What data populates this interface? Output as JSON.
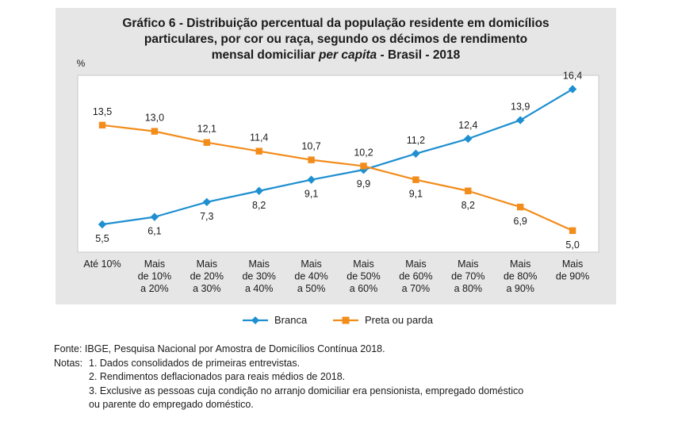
{
  "title": {
    "line1": "Gráfico 6 - Distribuição percentual da população residente em domicílios",
    "line2": "particulares, por cor ou raça, segundo os décimos de rendimento",
    "line3_before": "mensal domiciliar ",
    "line3_italic": "per capita",
    "line3_after": " - Brasil - 2018"
  },
  "chart_data": {
    "type": "line",
    "ylabel": "%",
    "ylim": [
      4,
      17
    ],
    "grid": false,
    "legend_position": "bottom",
    "categories": [
      [
        "Até 10%"
      ],
      [
        "Mais",
        "de 10%",
        "a 20%"
      ],
      [
        "Mais",
        "de 20%",
        "a 30%"
      ],
      [
        "Mais",
        "de 30%",
        "a 40%"
      ],
      [
        "Mais",
        "de 40%",
        "a 50%"
      ],
      [
        "Mais",
        "de 50%",
        "a 60%"
      ],
      [
        "Mais",
        "de 60%",
        "a 70%"
      ],
      [
        "Mais",
        "de 70%",
        "a 80%"
      ],
      [
        "Mais",
        "de 80%",
        "a 90%"
      ],
      [
        "Mais",
        "de 90%"
      ]
    ],
    "series": [
      {
        "name": "Branca",
        "color": "#1e8fd0",
        "marker": "diamond",
        "values": [
          5.5,
          6.1,
          7.3,
          8.2,
          9.1,
          9.9,
          11.2,
          12.4,
          13.9,
          16.4
        ],
        "labels": [
          "5,5",
          "6,1",
          "7,3",
          "8,2",
          "9,1",
          "9,9",
          "11,2",
          "12,4",
          "13,9",
          "16,4"
        ]
      },
      {
        "name": "Preta ou parda",
        "color": "#f28c1a",
        "marker": "square",
        "values": [
          13.5,
          13.0,
          12.1,
          11.4,
          10.7,
          10.2,
          9.1,
          8.2,
          6.9,
          5.0
        ],
        "labels": [
          "13,5",
          "13,0",
          "12,1",
          "11,4",
          "10,7",
          "10,2",
          "9,1",
          "8,2",
          "6,9",
          "5,0"
        ]
      }
    ]
  },
  "notes": {
    "source": "Fonte: IBGE, Pesquisa Nacional por Amostra de Domicílios Contínua 2018.",
    "notes_label": "Notas:",
    "note1": "1. Dados consolidados de primeiras entrevistas.",
    "note2": "2. Rendimentos deflacionados para reais médios de 2018.",
    "note3a": "3. Exclusive as pessoas cuja condição no arranjo domiciliar era pensionista, empregado doméstico",
    "note3b": "ou parente do empregado doméstico."
  }
}
